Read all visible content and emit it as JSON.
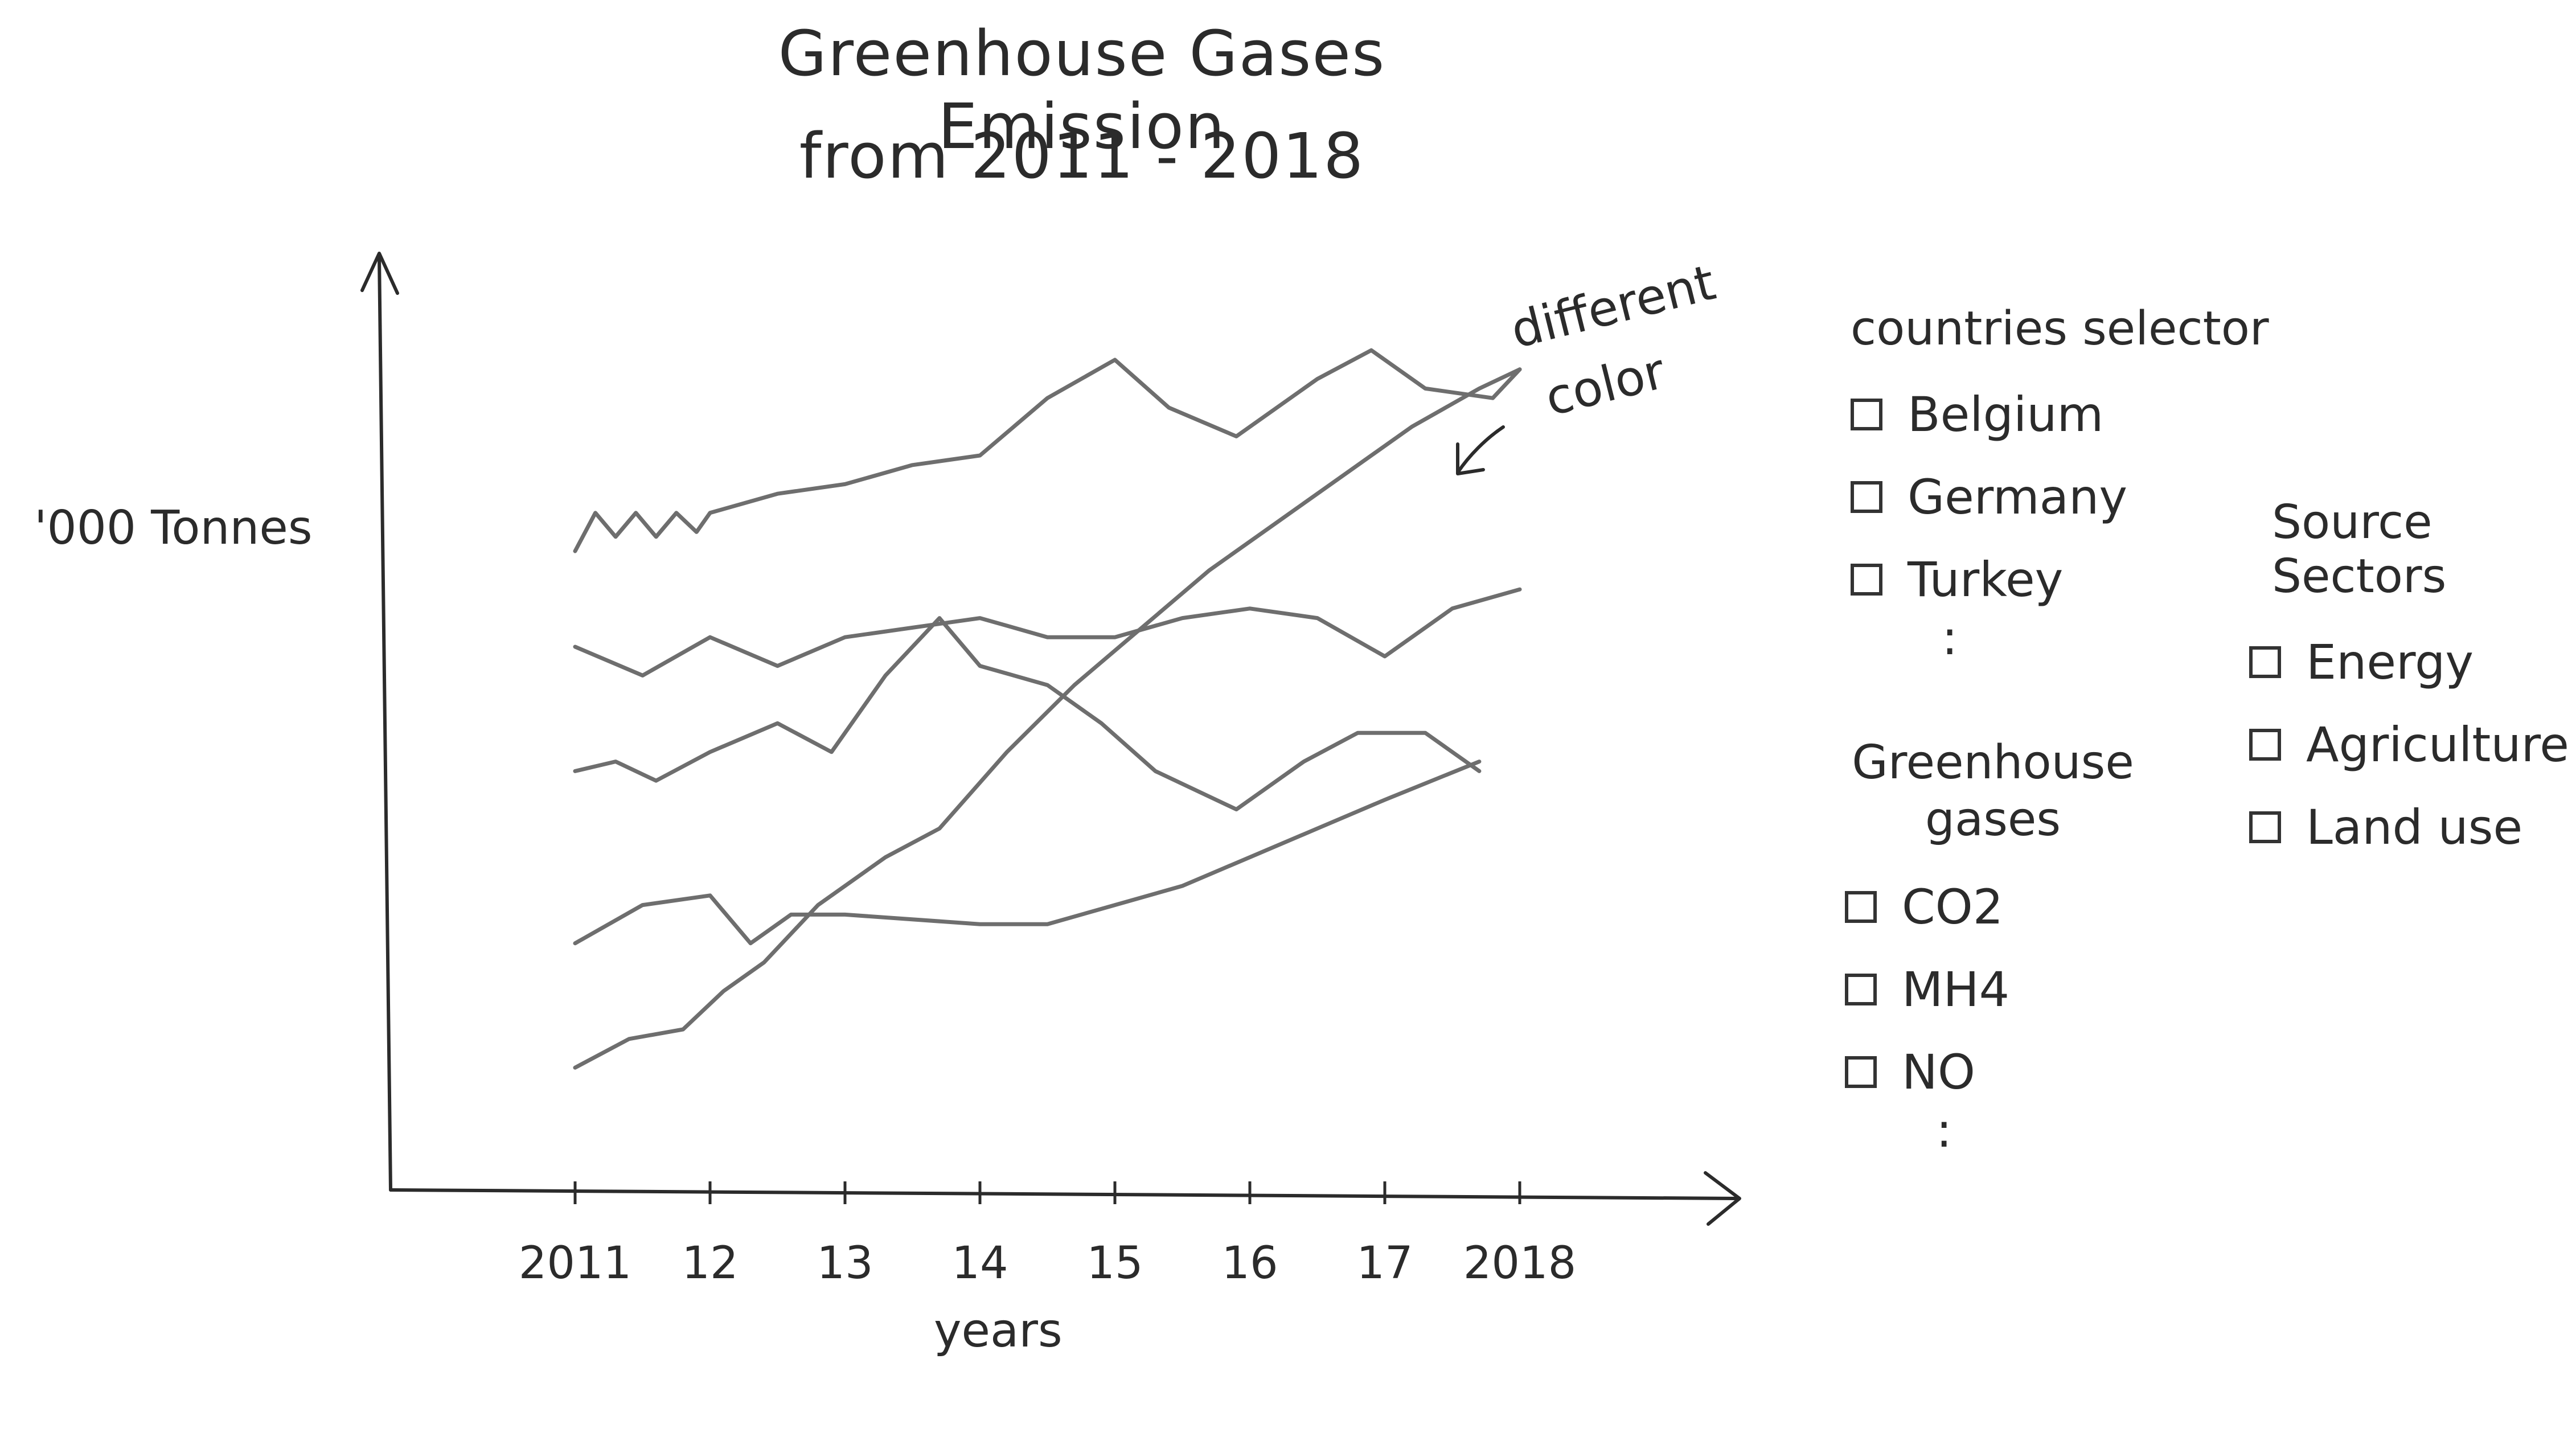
{
  "page": {
    "title_line1": "Greenhouse Gases Emission",
    "title_line2": "from 2011 - 2018",
    "annotation": [
      "different",
      "color"
    ]
  },
  "filters": {
    "countries": {
      "title": "countries selector",
      "items": [
        "Belgium",
        "Germany",
        "Turkey"
      ],
      "more": ":"
    },
    "gases": {
      "title_lines": [
        "Greenhouse",
        "gases"
      ],
      "items": [
        "CO2",
        "MH4",
        "NO"
      ],
      "more": ":"
    },
    "sectors": {
      "title": "Source Sectors",
      "items": [
        "Energy",
        "Agriculture",
        "Land use"
      ]
    }
  },
  "colors": {
    "ink": "#2b2b2b",
    "line": "#6e6e6e",
    "background": "#ffffff"
  },
  "chart_data": {
    "type": "line",
    "title": "Greenhouse Gases Emission from 2011 - 2018",
    "xlabel": "years",
    "ylabel": "'000 Tonnes",
    "x_tick_labels": [
      "2011",
      "12",
      "13",
      "14",
      "15",
      "16",
      "17",
      "2018"
    ],
    "x": [
      2011,
      2012,
      2013,
      2014,
      2015,
      2016,
      2017,
      2018
    ],
    "grid": false,
    "series": [
      {
        "values": [
          [
            2011,
            65
          ],
          [
            2011.15,
            69
          ],
          [
            2011.3,
            66.5
          ],
          [
            2011.45,
            69
          ],
          [
            2011.6,
            66.5
          ],
          [
            2011.75,
            69
          ],
          [
            2011.9,
            67
          ],
          [
            2012,
            69
          ],
          [
            2012.5,
            71
          ],
          [
            2013,
            72
          ],
          [
            2013.5,
            74
          ],
          [
            2014,
            75
          ],
          [
            2014.5,
            81
          ],
          [
            2015,
            85
          ],
          [
            2015.4,
            80
          ],
          [
            2015.9,
            77
          ],
          [
            2016.5,
            83
          ],
          [
            2016.9,
            86
          ],
          [
            2017.3,
            82
          ],
          [
            2017.8,
            81
          ],
          [
            2018,
            84
          ]
        ]
      },
      {
        "values": [
          [
            2011,
            55
          ],
          [
            2011.5,
            52
          ],
          [
            2012,
            56
          ],
          [
            2012.5,
            53
          ],
          [
            2013,
            56
          ],
          [
            2013.5,
            57
          ],
          [
            2014,
            58
          ],
          [
            2014.5,
            56
          ],
          [
            2015,
            56
          ],
          [
            2015.5,
            58
          ],
          [
            2016,
            59
          ],
          [
            2016.5,
            58
          ],
          [
            2017,
            54
          ],
          [
            2017.5,
            59
          ],
          [
            2018,
            61
          ]
        ]
      },
      {
        "values": [
          [
            2011,
            42
          ],
          [
            2011.3,
            43
          ],
          [
            2011.6,
            41
          ],
          [
            2012,
            44
          ],
          [
            2012.5,
            47
          ],
          [
            2012.9,
            44
          ],
          [
            2013.3,
            52
          ],
          [
            2013.7,
            58
          ],
          [
            2014,
            53
          ],
          [
            2014.5,
            51
          ],
          [
            2014.9,
            47
          ],
          [
            2015.3,
            42
          ],
          [
            2015.9,
            38
          ],
          [
            2016.4,
            43
          ],
          [
            2016.8,
            46
          ],
          [
            2017.3,
            46
          ],
          [
            2017.7,
            42
          ]
        ]
      },
      {
        "values": [
          [
            2011,
            24
          ],
          [
            2011.5,
            28
          ],
          [
            2012,
            29
          ],
          [
            2012.3,
            24
          ],
          [
            2012.6,
            27
          ],
          [
            2013,
            27
          ],
          [
            2014,
            26
          ],
          [
            2014.5,
            26
          ],
          [
            2015,
            28
          ],
          [
            2015.5,
            30
          ],
          [
            2016,
            33
          ],
          [
            2016.5,
            36
          ],
          [
            2017,
            39
          ],
          [
            2017.7,
            43
          ]
        ]
      },
      {
        "values": [
          [
            2011,
            11
          ],
          [
            2011.4,
            14
          ],
          [
            2011.8,
            15
          ],
          [
            2012.1,
            19
          ],
          [
            2012.4,
            22
          ],
          [
            2012.8,
            28
          ],
          [
            2013.3,
            33
          ],
          [
            2013.7,
            36
          ],
          [
            2014.2,
            44
          ],
          [
            2014.7,
            51
          ],
          [
            2015.2,
            57
          ],
          [
            2015.7,
            63
          ],
          [
            2016.2,
            68
          ],
          [
            2016.7,
            73
          ],
          [
            2017.2,
            78
          ],
          [
            2017.7,
            82
          ],
          [
            2018,
            84
          ]
        ]
      }
    ]
  }
}
